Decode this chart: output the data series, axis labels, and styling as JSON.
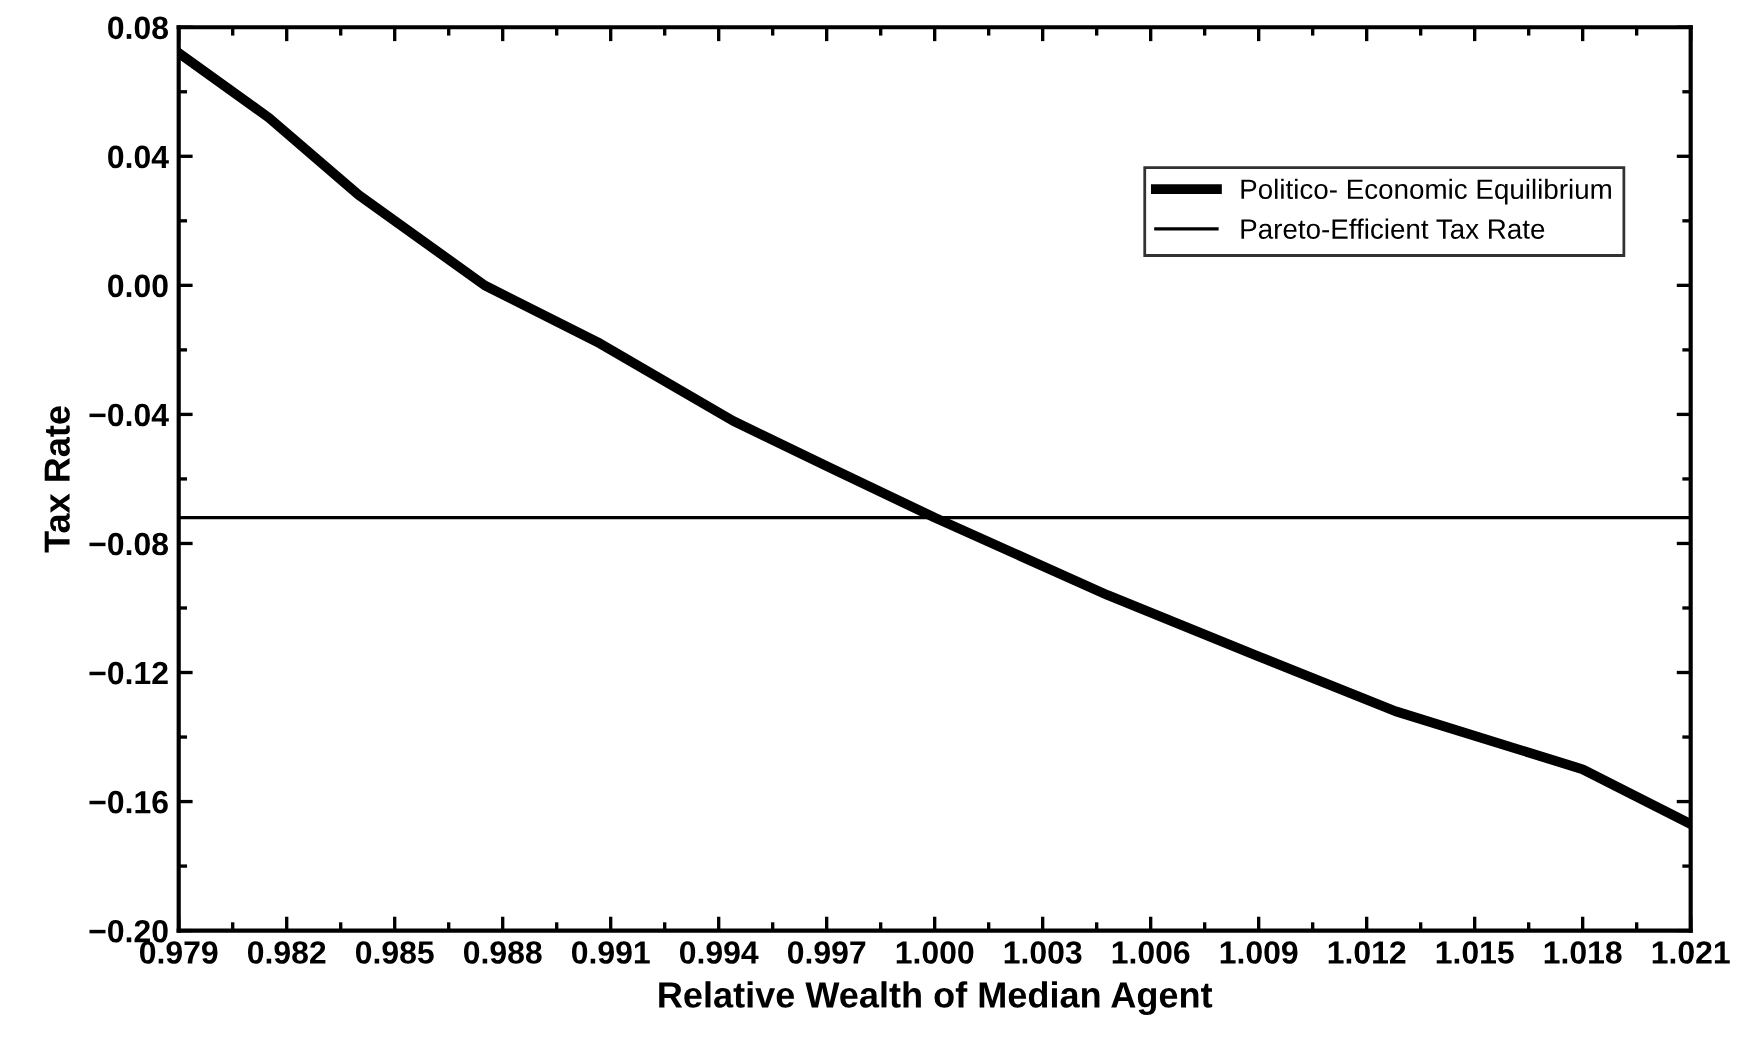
{
  "chart_data": {
    "type": "line",
    "xlabel": "Relative Wealth of Median Agent",
    "ylabel": "Tax Rate",
    "xlim": [
      0.979,
      1.021
    ],
    "xticks": [
      {
        "value": 0.979,
        "label": "0.979"
      },
      {
        "value": 0.982,
        "label": "0.982"
      },
      {
        "value": 0.985,
        "label": "0.985"
      },
      {
        "value": 0.988,
        "label": "0.988"
      },
      {
        "value": 0.991,
        "label": "0.991"
      },
      {
        "value": 0.994,
        "label": "0.994"
      },
      {
        "value": 0.997,
        "label": "0.997"
      },
      {
        "value": 1.0,
        "label": "1.000"
      },
      {
        "value": 1.003,
        "label": "1.003"
      },
      {
        "value": 1.006,
        "label": "1.006"
      },
      {
        "value": 1.009,
        "label": "1.009"
      },
      {
        "value": 1.012,
        "label": "1.012"
      },
      {
        "value": 1.015,
        "label": "1.015"
      },
      {
        "value": 1.018,
        "label": "1.018"
      },
      {
        "value": 1.021,
        "label": "1.021"
      }
    ],
    "ylim": [
      -0.2,
      0.08
    ],
    "yticks": [
      {
        "value": -0.2,
        "label": "−0.20"
      },
      {
        "value": -0.16,
        "label": "−0.16"
      },
      {
        "value": -0.12,
        "label": "−0.12"
      },
      {
        "value": -0.08,
        "label": "−0.08"
      },
      {
        "value": -0.04,
        "label": "−0.04"
      },
      {
        "value": 0.0,
        "label": "0.00"
      },
      {
        "value": 0.04,
        "label": "0.04"
      },
      {
        "value": 0.08,
        "label": "0.08"
      }
    ],
    "grid": false,
    "legend": "top right",
    "marker": "none",
    "line_style": "solid",
    "series": [
      {
        "name": "Politico- Economic Equilibrium",
        "color": "#000000",
        "x": [
          0.979,
          0.9815,
          0.984,
          0.9875,
          0.9907,
          0.9944,
          0.997,
          1.0,
          1.0048,
          1.009,
          1.0128,
          1.018,
          1.021
        ],
        "values": [
          0.072,
          0.052,
          0.028,
          0.0,
          -0.018,
          -0.042,
          -0.056,
          -0.072,
          -0.096,
          -0.115,
          -0.132,
          -0.15,
          -0.167
        ]
      },
      {
        "name": "Pareto-Efficient Tax Rate",
        "color": "#000000",
        "x": [
          0.979,
          1.021
        ],
        "values": [
          -0.072,
          -0.072
        ]
      }
    ]
  }
}
